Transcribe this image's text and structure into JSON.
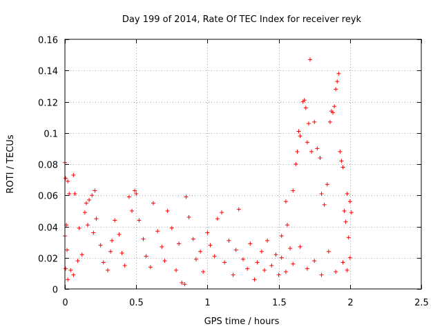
{
  "chart_data": {
    "type": "scatter",
    "title": "Day 199 of 2014, Rate Of TEC Index for receiver reyk",
    "xlabel": "GPS time / hours",
    "ylabel": "ROTI / TECUs",
    "xlim": [
      0,
      2.5
    ],
    "ylim": [
      0,
      0.16
    ],
    "xticks": [
      0,
      0.5,
      1,
      1.5,
      2,
      2.5
    ],
    "xtick_labels": [
      "0",
      "0.5",
      "1",
      "1.5",
      "2",
      "2.5"
    ],
    "yticks": [
      0,
      0.02,
      0.04,
      0.06,
      0.08,
      0.1,
      0.12,
      0.14,
      0.16
    ],
    "ytick_labels": [
      "0",
      "0.02",
      "0.04",
      "0.06",
      "0.08",
      "0.1",
      "0.12",
      "0.14",
      "0.16"
    ],
    "grid": true,
    "marker": "plus",
    "color": "#ff0000",
    "series": [
      {
        "name": "ROTI",
        "points": [
          [
            0.0,
            0.081
          ],
          [
            0.005,
            0.071
          ],
          [
            0.02,
            0.069
          ],
          [
            0.06,
            0.073
          ],
          [
            0.03,
            0.061
          ],
          [
            0.07,
            0.061
          ],
          [
            0.01,
            0.041
          ],
          [
            0.0,
            0.034
          ],
          [
            0.015,
            0.025
          ],
          [
            0.005,
            0.013
          ],
          [
            0.02,
            0.006
          ],
          [
            0.04,
            0.012
          ],
          [
            0.06,
            0.009
          ],
          [
            0.09,
            0.018
          ],
          [
            0.12,
            0.022
          ],
          [
            0.1,
            0.039
          ],
          [
            0.14,
            0.049
          ],
          [
            0.15,
            0.055
          ],
          [
            0.17,
            0.057
          ],
          [
            0.19,
            0.06
          ],
          [
            0.21,
            0.063
          ],
          [
            0.16,
            0.041
          ],
          [
            0.2,
            0.036
          ],
          [
            0.22,
            0.045
          ],
          [
            0.25,
            0.028
          ],
          [
            0.27,
            0.017
          ],
          [
            0.3,
            0.012
          ],
          [
            0.32,
            0.024
          ],
          [
            0.33,
            0.031
          ],
          [
            0.35,
            0.044
          ],
          [
            0.38,
            0.035
          ],
          [
            0.4,
            0.023
          ],
          [
            0.42,
            0.015
          ],
          [
            0.45,
            0.059
          ],
          [
            0.47,
            0.05
          ],
          [
            0.49,
            0.063
          ],
          [
            0.5,
            0.061
          ],
          [
            0.52,
            0.044
          ],
          [
            0.55,
            0.032
          ],
          [
            0.57,
            0.021
          ],
          [
            0.6,
            0.014
          ],
          [
            0.62,
            0.055
          ],
          [
            0.65,
            0.037
          ],
          [
            0.68,
            0.027
          ],
          [
            0.7,
            0.018
          ],
          [
            0.72,
            0.05
          ],
          [
            0.75,
            0.039
          ],
          [
            0.78,
            0.012
          ],
          [
            0.8,
            0.029
          ],
          [
            0.82,
            0.004
          ],
          [
            0.84,
            0.003
          ],
          [
            0.85,
            0.059
          ],
          [
            0.87,
            0.046
          ],
          [
            0.9,
            0.032
          ],
          [
            0.92,
            0.019
          ],
          [
            0.95,
            0.024
          ],
          [
            0.97,
            0.011
          ],
          [
            1.0,
            0.036
          ],
          [
            1.02,
            0.028
          ],
          [
            1.05,
            0.021
          ],
          [
            1.07,
            0.045
          ],
          [
            1.1,
            0.049
          ],
          [
            1.12,
            0.017
          ],
          [
            1.15,
            0.031
          ],
          [
            1.18,
            0.009
          ],
          [
            1.2,
            0.025
          ],
          [
            1.22,
            0.051
          ],
          [
            1.25,
            0.019
          ],
          [
            1.28,
            0.013
          ],
          [
            1.3,
            0.029
          ],
          [
            1.33,
            0.006
          ],
          [
            1.35,
            0.017
          ],
          [
            1.38,
            0.024
          ],
          [
            1.4,
            0.012
          ],
          [
            1.42,
            0.031
          ],
          [
            1.45,
            0.015
          ],
          [
            1.48,
            0.022
          ],
          [
            1.5,
            0.009
          ],
          [
            1.52,
            0.034
          ],
          [
            1.55,
            0.056
          ],
          [
            1.56,
            0.041
          ],
          [
            1.58,
            0.026
          ],
          [
            1.6,
            0.063
          ],
          [
            1.62,
            0.08
          ],
          [
            1.63,
            0.088
          ],
          [
            1.64,
            0.101
          ],
          [
            1.65,
            0.098
          ],
          [
            1.67,
            0.12
          ],
          [
            1.68,
            0.121
          ],
          [
            1.69,
            0.116
          ],
          [
            1.7,
            0.094
          ],
          [
            1.71,
            0.106
          ],
          [
            1.72,
            0.147
          ],
          [
            1.73,
            0.088
          ],
          [
            1.75,
            0.107
          ],
          [
            1.77,
            0.09
          ],
          [
            1.79,
            0.084
          ],
          [
            1.8,
            0.061
          ],
          [
            1.82,
            0.054
          ],
          [
            1.84,
            0.067
          ],
          [
            1.86,
            0.107
          ],
          [
            1.87,
            0.114
          ],
          [
            1.88,
            0.113
          ],
          [
            1.89,
            0.117
          ],
          [
            1.9,
            0.128
          ],
          [
            1.91,
            0.133
          ],
          [
            1.92,
            0.138
          ],
          [
            1.93,
            0.088
          ],
          [
            1.94,
            0.082
          ],
          [
            1.95,
            0.078
          ],
          [
            1.96,
            0.05
          ],
          [
            1.97,
            0.043
          ],
          [
            1.98,
            0.061
          ],
          [
            1.99,
            0.033
          ],
          [
            2.0,
            0.056
          ],
          [
            2.01,
            0.049
          ],
          [
            2.0,
            0.02
          ],
          [
            1.98,
            0.012
          ],
          [
            1.95,
            0.017
          ],
          [
            1.9,
            0.011
          ],
          [
            1.85,
            0.024
          ],
          [
            1.8,
            0.009
          ],
          [
            1.75,
            0.018
          ],
          [
            1.7,
            0.013
          ],
          [
            1.65,
            0.027
          ],
          [
            1.6,
            0.016
          ],
          [
            1.55,
            0.011
          ],
          [
            1.52,
            0.02
          ]
        ]
      }
    ]
  }
}
